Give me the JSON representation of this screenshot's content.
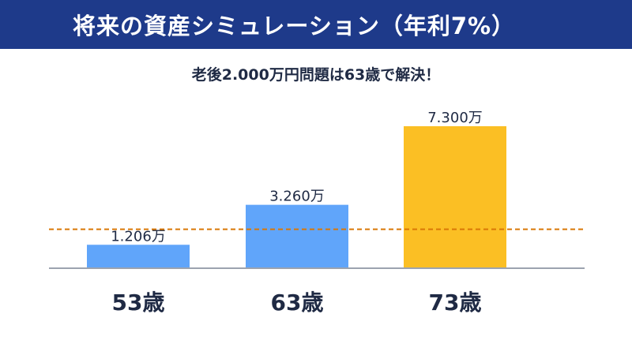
{
  "header": {
    "title": "将来の資産シミュレーション（年利7%）"
  },
  "subtitle": "老後2.000万円問題は63歳で解決！",
  "colors": {
    "header_bg": "#1e3a8a",
    "bar": "#60a5fa",
    "highlight_bar": "#fbbf24",
    "target_line": "#d97706",
    "axis": "#9ca3af",
    "text": "#1f2a44"
  },
  "chart_data": {
    "type": "bar",
    "categories": [
      "53歳",
      "63歳",
      "73歳"
    ],
    "values": [
      1206,
      3260,
      7300
    ],
    "value_labels": [
      "1.206万",
      "3.260万",
      "7.300万"
    ],
    "highlight_index": 2,
    "reference_line": {
      "value": 2000,
      "style": "dashed"
    },
    "ylim": [
      0,
      7300
    ],
    "grid": false,
    "legend": "none"
  }
}
